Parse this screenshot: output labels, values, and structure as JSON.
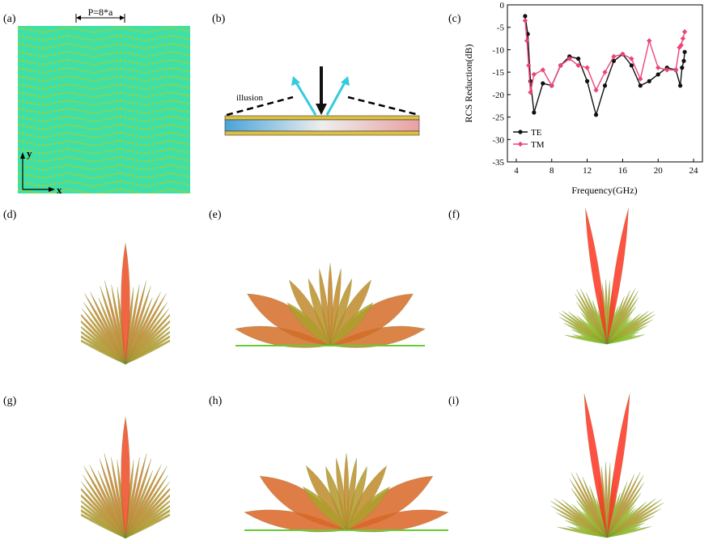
{
  "panels": {
    "a": "(a)",
    "b": "(b)",
    "c": "(c)",
    "d": "(d)",
    "e": "(e)",
    "f": "(f)",
    "g": "(g)",
    "h": "(h)",
    "i": "(i)"
  },
  "panel_a": {
    "period_label": "P=8*a",
    "axis_y": "y",
    "axis_x": "x",
    "fill_color": "#3fe0a8",
    "pattern_color": "#9ad13a"
  },
  "panel_b": {
    "illusion_label": "illusion",
    "incident_color": "#111111",
    "reflect_color": "#33ccdd"
  },
  "chart_data": {
    "type": "line",
    "title": "",
    "xlabel": "Frequency(GHz)",
    "ylabel": "RCS Reduction(dB)",
    "xlim": [
      3,
      25
    ],
    "ylim": [
      -35,
      0
    ],
    "xticks": [
      4,
      8,
      12,
      16,
      20,
      24
    ],
    "yticks": [
      0,
      -5,
      -10,
      -15,
      -20,
      -25,
      -30,
      -35
    ],
    "legend_position": "bottom-left",
    "series": [
      {
        "name": "TE",
        "color": "#111111",
        "x": [
          5.0,
          5.3,
          5.6,
          6.0,
          7.0,
          8.0,
          9.0,
          10.0,
          11.0,
          12.0,
          13.0,
          14.0,
          15.0,
          16.0,
          17.0,
          18.0,
          19.0,
          20.0,
          21.0,
          22.0,
          22.5,
          22.7,
          22.9,
          23.0
        ],
        "y": [
          -2.5,
          -6.5,
          -17.0,
          -24.0,
          -17.5,
          -18.0,
          -13.5,
          -11.5,
          -12.0,
          -17.0,
          -24.5,
          -18.0,
          -12.5,
          -11.0,
          -13.5,
          -18.0,
          -17.0,
          -15.5,
          -14.0,
          -14.5,
          -18.0,
          -14.0,
          -12.5,
          -10.5
        ]
      },
      {
        "name": "TM",
        "color": "#ee4477",
        "x": [
          5.0,
          5.2,
          5.4,
          5.6,
          6.0,
          7.0,
          8.0,
          9.0,
          10.0,
          11.0,
          12.0,
          13.0,
          14.0,
          15.0,
          16.0,
          17.0,
          18.0,
          19.0,
          20.0,
          21.0,
          22.0,
          22.4,
          22.6,
          22.8,
          23.0
        ],
        "y": [
          -3.5,
          -8.0,
          -13.5,
          -19.5,
          -15.5,
          -14.5,
          -18.0,
          -13.5,
          -12.0,
          -13.5,
          -14.0,
          -19.0,
          -15.0,
          -11.5,
          -11.0,
          -12.0,
          -16.5,
          -8.0,
          -14.0,
          -14.5,
          -14.5,
          -9.5,
          -9.0,
          -7.5,
          -6.0
        ]
      }
    ]
  },
  "radiation_patterns": {
    "color_low": "#66ff33",
    "color_high": "#ff3322"
  }
}
